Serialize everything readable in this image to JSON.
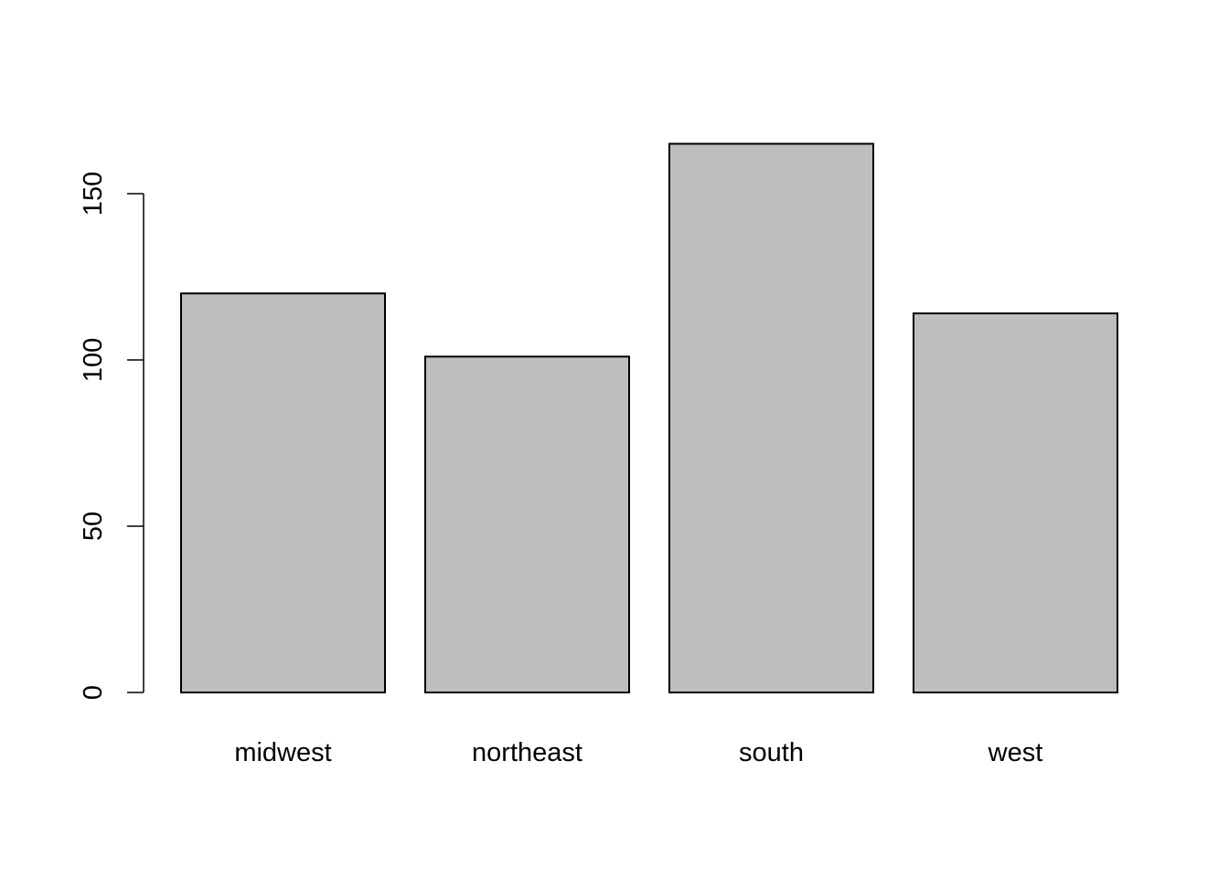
{
  "chart_data": {
    "type": "bar",
    "categories": [
      "midwest",
      "northeast",
      "south",
      "west"
    ],
    "values": [
      120,
      101,
      165,
      114
    ],
    "title": "",
    "xlabel": "",
    "ylabel": "",
    "ylim": [
      0,
      165
    ],
    "yticks": [
      0,
      50,
      100,
      150
    ],
    "ytick_labels": [
      "0",
      "50",
      "100",
      "150"
    ],
    "grid": false,
    "legend": false,
    "colors": {
      "bar_fill": "#bebebe",
      "bar_stroke": "#000000",
      "axis": "#000000",
      "background": "#ffffff"
    }
  }
}
